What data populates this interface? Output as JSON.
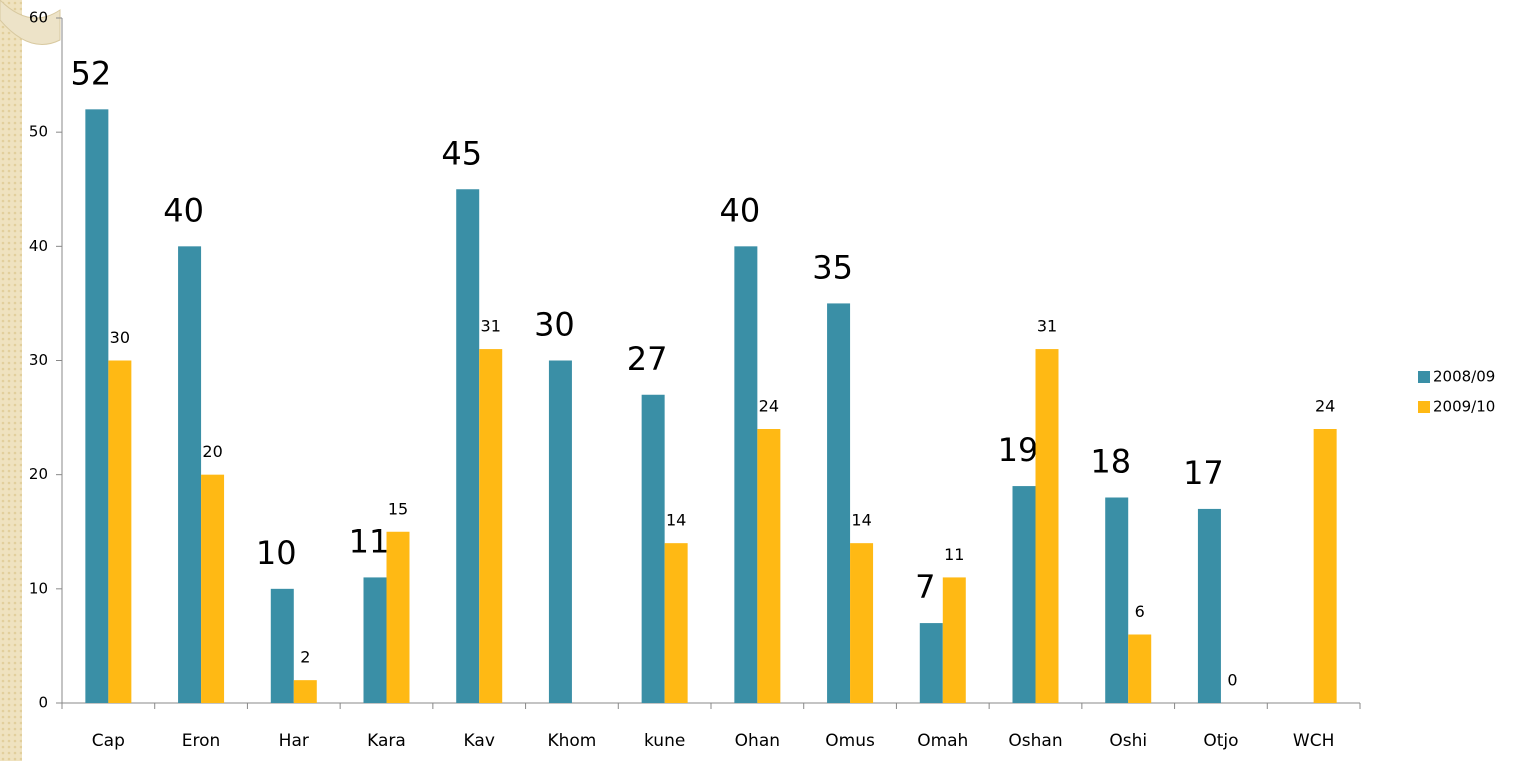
{
  "chart_data": {
    "type": "bar",
    "categories": [
      "Cap",
      "Eron",
      "Har",
      "Kara",
      "Kav",
      "Khom",
      "kune",
      "Ohan",
      "Omus",
      "Omah",
      "Oshan",
      "Oshi",
      "Otjo",
      "WCH"
    ],
    "series": [
      {
        "name": "2008/09",
        "color": "#3a8fa6",
        "values": [
          52,
          40,
          10,
          11,
          45,
          30,
          27,
          40,
          35,
          7,
          19,
          18,
          17,
          null
        ]
      },
      {
        "name": "2009/10",
        "color": "#ffb914",
        "values": [
          30,
          20,
          2,
          15,
          31,
          null,
          14,
          24,
          14,
          11,
          31,
          6,
          0,
          24
        ]
      }
    ],
    "ylim": [
      0,
      60
    ],
    "yticks": [
      0,
      10,
      20,
      30,
      40,
      50,
      60
    ],
    "legend": "right"
  }
}
